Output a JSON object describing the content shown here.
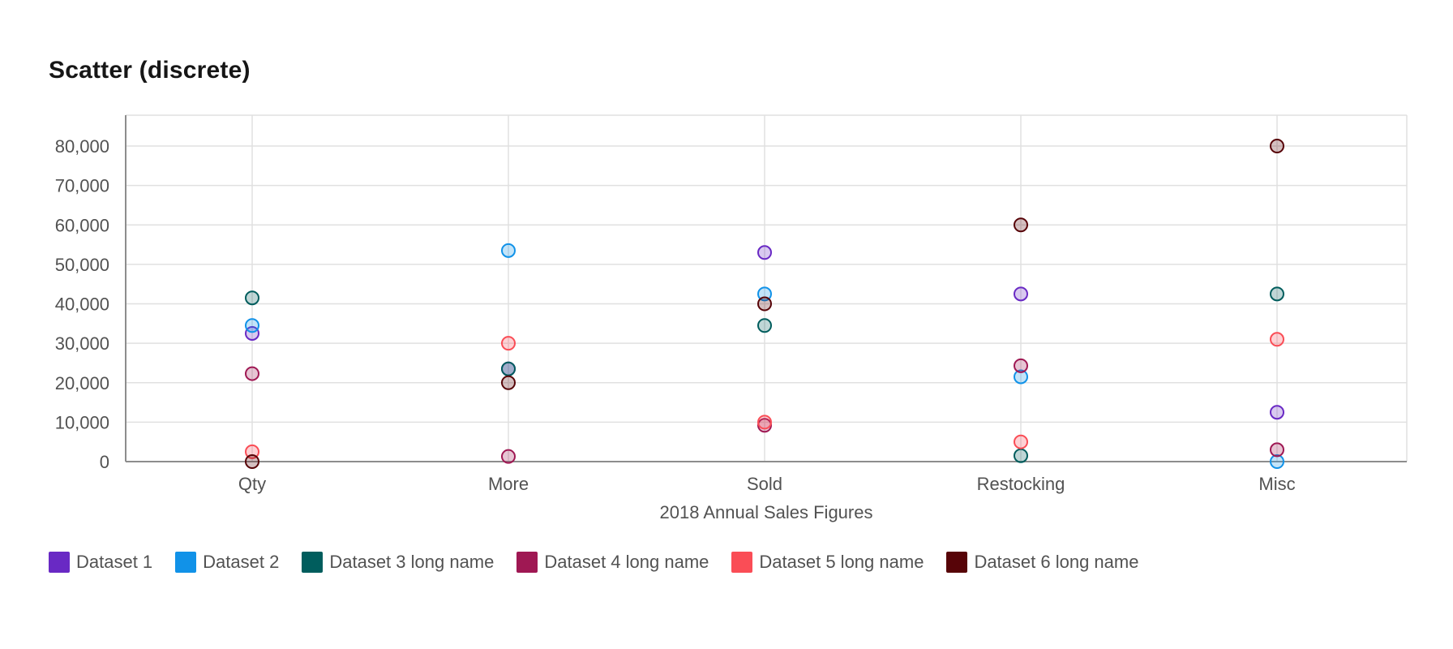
{
  "chart_data": {
    "type": "scatter",
    "title": "Scatter (discrete)",
    "xlabel": "2018 Annual Sales Figures",
    "ylabel": "",
    "categories": [
      "Qty",
      "More",
      "Sold",
      "Restocking",
      "Misc"
    ],
    "ylim": [
      0,
      80000
    ],
    "yticks": [
      0,
      10000,
      20000,
      30000,
      40000,
      50000,
      60000,
      70000,
      80000
    ],
    "ytick_labels": [
      "0",
      "10,000",
      "20,000",
      "30,000",
      "40,000",
      "50,000",
      "60,000",
      "70,000",
      "80,000"
    ],
    "grid": true,
    "legend_position": "bottom-left",
    "series": [
      {
        "name": "Dataset 1",
        "color": "#6929c4",
        "values": [
          32500,
          23500,
          53000,
          42500,
          12500
        ]
      },
      {
        "name": "Dataset 2",
        "color": "#1192e8",
        "values": [
          34500,
          53500,
          42500,
          21500,
          0
        ]
      },
      {
        "name": "Dataset 3 long name",
        "color": "#005d5d",
        "values": [
          41500,
          23500,
          34500,
          1500,
          42500
        ]
      },
      {
        "name": "Dataset 4 long name",
        "color": "#9f1853",
        "values": [
          22300,
          1300,
          9200,
          24300,
          3000
        ]
      },
      {
        "name": "Dataset 5 long name",
        "color": "#fa4d56",
        "values": [
          2500,
          30000,
          10000,
          5000,
          31000
        ]
      },
      {
        "name": "Dataset 6 long name",
        "color": "#570408",
        "values": [
          0,
          20000,
          40000,
          60000,
          80000
        ]
      }
    ]
  }
}
